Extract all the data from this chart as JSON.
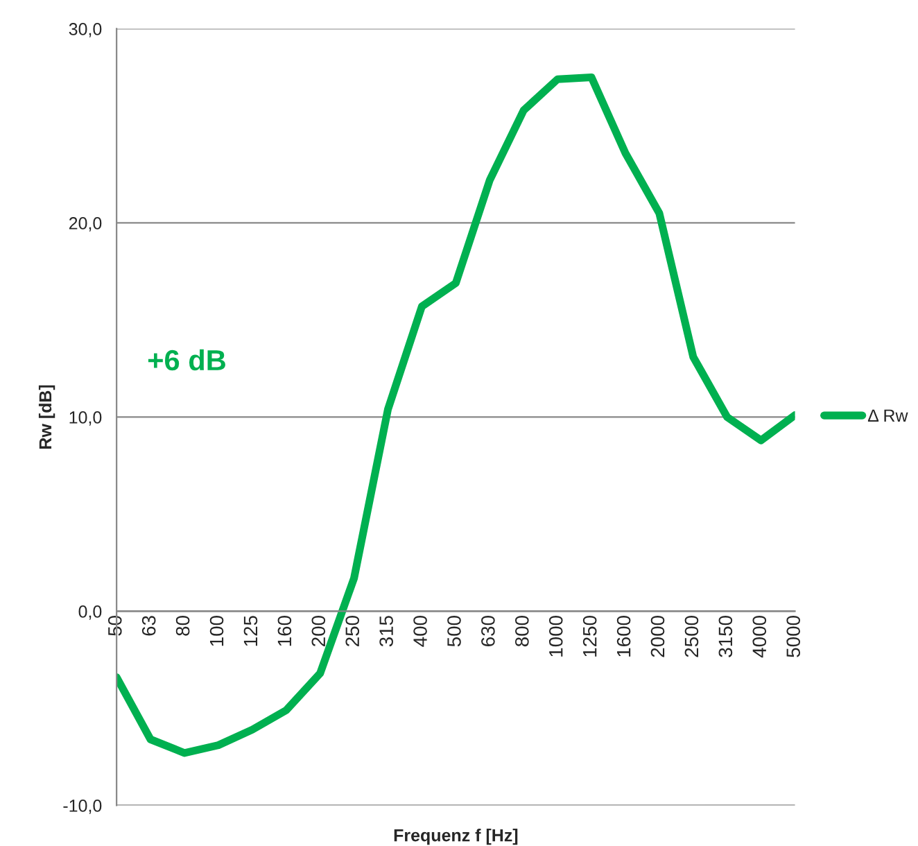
{
  "chart_data": {
    "type": "line",
    "xlabel": "Frequenz f [Hz]",
    "ylabel": "Rw [dB]",
    "categories": [
      "50",
      "63",
      "80",
      "100",
      "125",
      "160",
      "200",
      "250",
      "315",
      "400",
      "500",
      "630",
      "800",
      "1000",
      "1250",
      "1600",
      "2000",
      "2500",
      "3150",
      "4000",
      "5000"
    ],
    "series": [
      {
        "name": "Δ Rw",
        "color": "#00b050",
        "values": [
          -3.4,
          -6.6,
          -7.3,
          -6.9,
          -6.1,
          -5.1,
          -3.2,
          1.7,
          10.4,
          15.7,
          16.9,
          22.2,
          25.8,
          27.4,
          27.5,
          23.6,
          20.5,
          13.1,
          10.0,
          8.8,
          10.1
        ]
      }
    ],
    "ylim": [
      -10,
      30
    ],
    "yticks": [
      {
        "value": -10,
        "label": "-10,0"
      },
      {
        "value": 0,
        "label": "0,0"
      },
      {
        "value": 10,
        "label": "10,0"
      },
      {
        "value": 20,
        "label": "20,0"
      },
      {
        "value": 30,
        "label": "30,0"
      }
    ],
    "grid": "y",
    "legend": "right",
    "marker": "none",
    "line_style": "solid",
    "annotations": [
      "+6 dB"
    ]
  }
}
